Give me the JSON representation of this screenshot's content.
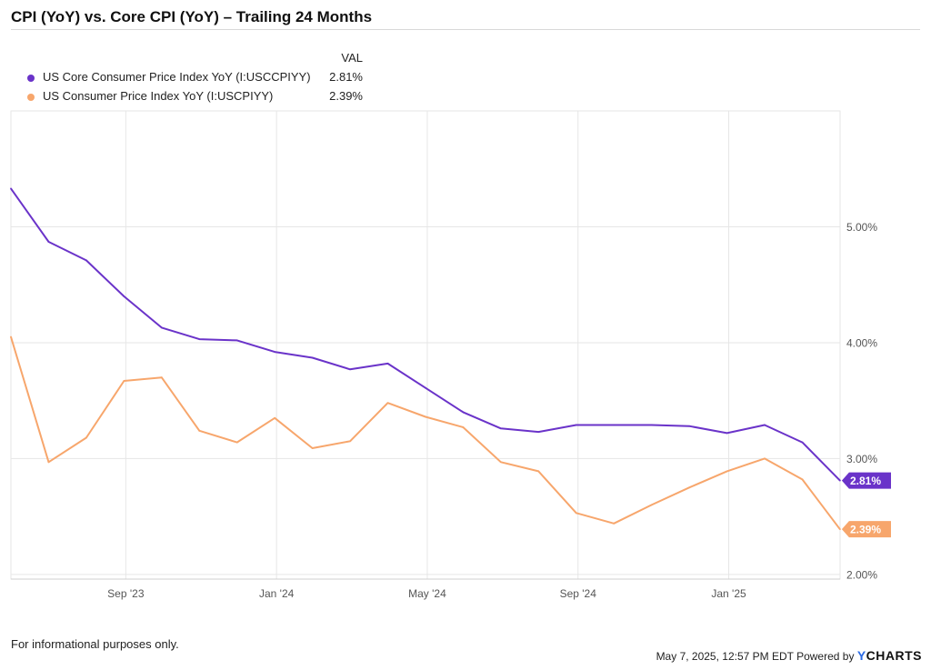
{
  "chart_data": {
    "type": "line",
    "title": "CPI (YoY) vs. Core CPI (YoY) – Trailing 24 Months",
    "legend_header": "VAL",
    "x": [
      "2023-05",
      "2023-06",
      "2023-07",
      "2023-08",
      "2023-09",
      "2023-10",
      "2023-11",
      "2023-12",
      "2024-01",
      "2024-02",
      "2024-03",
      "2024-04",
      "2024-05",
      "2024-06",
      "2024-07",
      "2024-08",
      "2024-09",
      "2024-10",
      "2024-11",
      "2024-12",
      "2025-01",
      "2025-02",
      "2025-03"
    ],
    "x_tick_labels": [
      {
        "date": "2023-08-01",
        "label": "Sep '23"
      },
      {
        "date": "2023-12-01",
        "label": "Jan '24"
      },
      {
        "date": "2024-04-01",
        "label": "May '24"
      },
      {
        "date": "2024-08-01",
        "label": "Sep '24"
      },
      {
        "date": "2024-12-01",
        "label": "Jan '25"
      }
    ],
    "y_ticks": [
      {
        "value": 2,
        "label": "2.00%"
      },
      {
        "value": 3,
        "label": "3.00%"
      },
      {
        "value": 4,
        "label": "4.00%"
      },
      {
        "value": 5,
        "label": "5.00%"
      }
    ],
    "ylim": [
      1.96,
      6.0
    ],
    "grid": true,
    "legend_placement": "top-left",
    "series": [
      {
        "name": "US Core Consumer Price Index YoY (I:USCCPIYY)",
        "value_label": "2.81%",
        "end_label": "2.81%",
        "color": "#6a33c9",
        "values": [
          5.33,
          4.87,
          4.71,
          4.4,
          4.13,
          4.03,
          4.02,
          3.92,
          3.87,
          3.77,
          3.82,
          3.61,
          3.4,
          3.26,
          3.23,
          3.29,
          3.29,
          3.29,
          3.28,
          3.22,
          3.29,
          3.14,
          2.81
        ]
      },
      {
        "name": "US Consumer Price Index YoY (I:USCPIYY)",
        "value_label": "2.39%",
        "end_label": "2.39%",
        "color": "#f7a66c",
        "values": [
          4.05,
          2.97,
          3.18,
          3.67,
          3.7,
          3.24,
          3.14,
          3.35,
          3.09,
          3.15,
          3.48,
          3.36,
          3.27,
          2.97,
          2.89,
          2.53,
          2.44,
          2.6,
          2.75,
          2.89,
          3.0,
          2.82,
          2.39
        ]
      }
    ]
  },
  "footer": {
    "disclaimer": "For informational purposes only.",
    "timestamp": "May 7, 2025, 12:57 PM EDT Powered by",
    "brand_y": "Y",
    "brand_rest": "CHARTS"
  }
}
